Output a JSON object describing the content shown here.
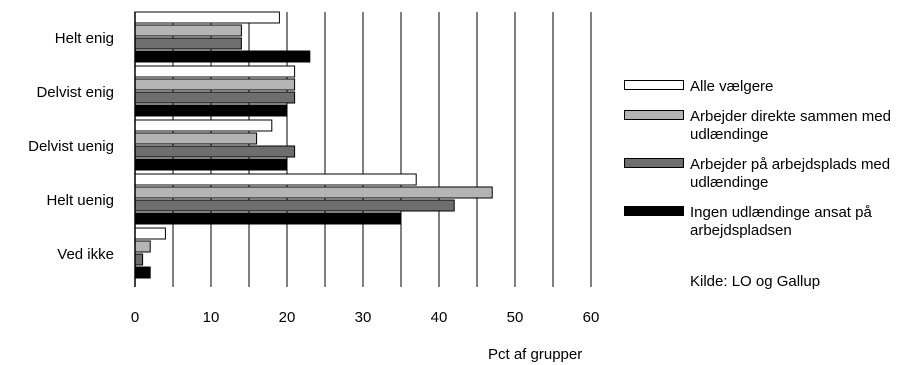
{
  "chart_data": {
    "type": "bar",
    "orientation": "horizontal",
    "categories": [
      "Helt enig",
      "Delvist enig",
      "Delvist uenig",
      "Helt uenig",
      "Ved ikke"
    ],
    "series": [
      {
        "name": "Alle vælgere",
        "color": "#ffffff",
        "values": [
          19,
          21,
          18,
          37,
          4
        ]
      },
      {
        "name": "Arbejder direkte sammen med udlændinge",
        "color": "#b4b4b4",
        "values": [
          14,
          21,
          16,
          47,
          2
        ]
      },
      {
        "name": "Arbejder på arbejdsplads med udlændinge",
        "color": "#6e6e6e",
        "values": [
          14,
          21,
          21,
          42,
          1
        ]
      },
      {
        "name": "Ingen udlændinge ansat på arbejdspladsen",
        "color": "#000000",
        "values": [
          23,
          20,
          20,
          35,
          2
        ]
      }
    ],
    "xlim": [
      0,
      60
    ],
    "xticks": [
      "0",
      "10",
      "20",
      "30",
      "40",
      "50",
      "60"
    ],
    "xlabel": "Pct af grupper",
    "grid": true,
    "legend_position": "right",
    "source": "Kilde: LO og Gallup"
  }
}
